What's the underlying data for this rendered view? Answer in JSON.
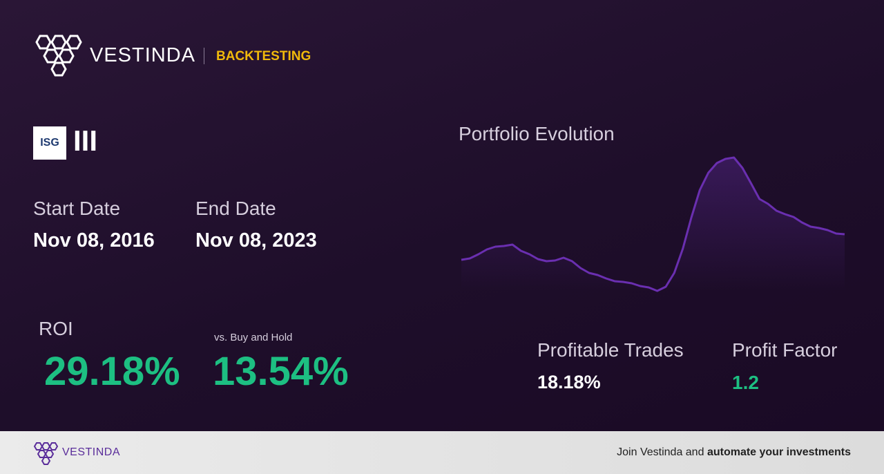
{
  "header": {
    "brand": "VESTINDA",
    "section": "BACKTESTING"
  },
  "asset": {
    "logo_text": "ISG",
    "ticker": "III"
  },
  "dates": {
    "start": {
      "label": "Start Date",
      "value": "Nov 08, 2016"
    },
    "end": {
      "label": "End Date",
      "value": "Nov 08, 2023"
    }
  },
  "metrics": {
    "roi": {
      "label": "ROI",
      "value": "29.18%"
    },
    "buy_and_hold": {
      "label": "vs. Buy and Hold",
      "value": "13.54%"
    },
    "profitable_trades": {
      "label": "Profitable Trades",
      "value": "18.18%"
    },
    "profit_factor": {
      "label": "Profit Factor",
      "value": "1.2"
    }
  },
  "portfolio_evolution": {
    "title": "Portfolio Evolution",
    "type": "line",
    "color": "#6a2fb0",
    "values": [
      74,
      76,
      82,
      89,
      93,
      94,
      96,
      87,
      82,
      75,
      72,
      73,
      77,
      72,
      62,
      55,
      52,
      47,
      43,
      42,
      40,
      36,
      34,
      29,
      35,
      55,
      90,
      135,
      175,
      200,
      214,
      220,
      222,
      207,
      185,
      162,
      155,
      145,
      140,
      136,
      128,
      122,
      120,
      117,
      112,
      111
    ]
  },
  "footer": {
    "brand": "VESTINDA",
    "cta_text": "Join Vestinda and",
    "cta_bold": "automate your investments"
  }
}
